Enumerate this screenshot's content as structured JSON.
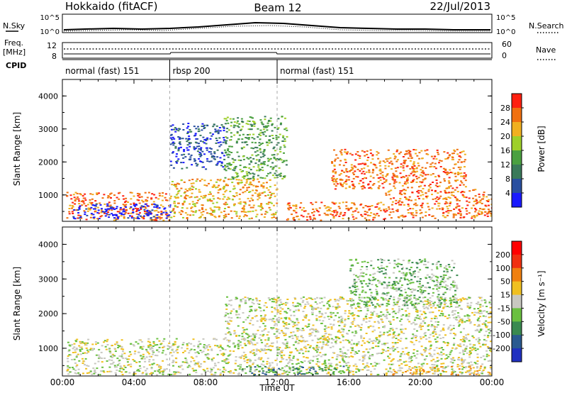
{
  "header": {
    "station": "Hokkaido (fitACF)",
    "beam": "Beam 12",
    "date": "22/Jul/2013"
  },
  "top_panels": {
    "nsky_label": "N.Sky",
    "nsearch_label": "N.Search",
    "nsky_ticks": [
      "10^5",
      "10^0"
    ],
    "nsearch_ticks": [
      "10^5",
      "10^0"
    ],
    "freq_label": "Freq.",
    "freq_unit": "[MHz]",
    "freq_ticks": [
      "12",
      "8"
    ],
    "nave_label": "Nave",
    "nave_ticks": [
      "60",
      "0"
    ],
    "cpid_label": "CPID",
    "modes": [
      {
        "label": "normal (fast) 151",
        "start": 0,
        "end": 6
      },
      {
        "label": "rbsp 200",
        "start": 6,
        "end": 12
      },
      {
        "label": "normal (fast) 151",
        "start": 12,
        "end": 24
      }
    ]
  },
  "x_axis": {
    "title": "Time UT",
    "ticks": [
      "00:00",
      "04:00",
      "08:00",
      "12:00",
      "16:00",
      "20:00",
      "00:00"
    ]
  },
  "chart_data": [
    {
      "type": "heatmap",
      "panel": "power",
      "ylabel": "Slant Range [km]",
      "y_ticks": [
        "1000",
        "2000",
        "3000",
        "4000"
      ],
      "ylim": [
        200,
        4500
      ],
      "xlim": [
        0,
        24
      ],
      "colorbar_label": "Power [dB]",
      "colorbar_ticks": [
        "4",
        "8",
        "12",
        "16",
        "20",
        "24",
        "28"
      ],
      "colors": [
        "#1a1aff",
        "#2a4fa0",
        "#3a7a5a",
        "#4aa040",
        "#9ed02a",
        "#f0b020",
        "#f07010",
        "#ff2010"
      ],
      "regions": [
        {
          "t0": 0.2,
          "t1": 6,
          "r0": 250,
          "r1": 1100,
          "level": 6
        },
        {
          "t0": 6,
          "t1": 12,
          "r0": 300,
          "r1": 1500,
          "level": 5
        },
        {
          "t0": 9,
          "t1": 12.5,
          "r0": 1500,
          "r1": 3400,
          "level": 3
        },
        {
          "t0": 12.5,
          "t1": 18,
          "r0": 250,
          "r1": 800,
          "level": 6
        },
        {
          "t0": 15,
          "t1": 22.5,
          "r0": 1200,
          "r1": 2400,
          "level": 6
        },
        {
          "t0": 18,
          "t1": 24,
          "r0": 300,
          "r1": 1200,
          "level": 6
        },
        {
          "t0": 0.5,
          "t1": 6,
          "r0": 300,
          "r1": 750,
          "level": 0
        },
        {
          "t0": 6,
          "t1": 9,
          "r0": 1800,
          "r1": 3200,
          "level": 1
        }
      ]
    },
    {
      "type": "heatmap",
      "panel": "velocity",
      "ylabel": "Slant Range [km]",
      "y_ticks": [
        "1000",
        "2000",
        "3000",
        "4000"
      ],
      "ylim": [
        200,
        4500
      ],
      "xlim": [
        0,
        24
      ],
      "colorbar_label": "Velocity [m s⁻¹]",
      "colorbar_ticks": [
        "200",
        "100",
        "50",
        "15",
        "-15",
        "-50",
        "-100",
        "-200"
      ],
      "colors": [
        "#2030c0",
        "#2a5a90",
        "#3a8a50",
        "#6ac040",
        "#c8c8c0",
        "#f0c020",
        "#f08010",
        "#f03010",
        "#ff0000"
      ],
      "regions": [
        {
          "t0": 0.2,
          "t1": 24,
          "r0": 250,
          "r1": 1300,
          "level": 4
        },
        {
          "t0": 9,
          "t1": 24,
          "r0": 1300,
          "r1": 2500,
          "level": 4
        },
        {
          "t0": 16,
          "t1": 22,
          "r0": 2200,
          "r1": 3600,
          "level": 3
        },
        {
          "t0": 10,
          "t1": 16,
          "r0": 250,
          "r1": 500,
          "level": 2
        },
        {
          "t0": 18,
          "t1": 24,
          "r0": 250,
          "r1": 500,
          "level": 5
        }
      ]
    }
  ]
}
